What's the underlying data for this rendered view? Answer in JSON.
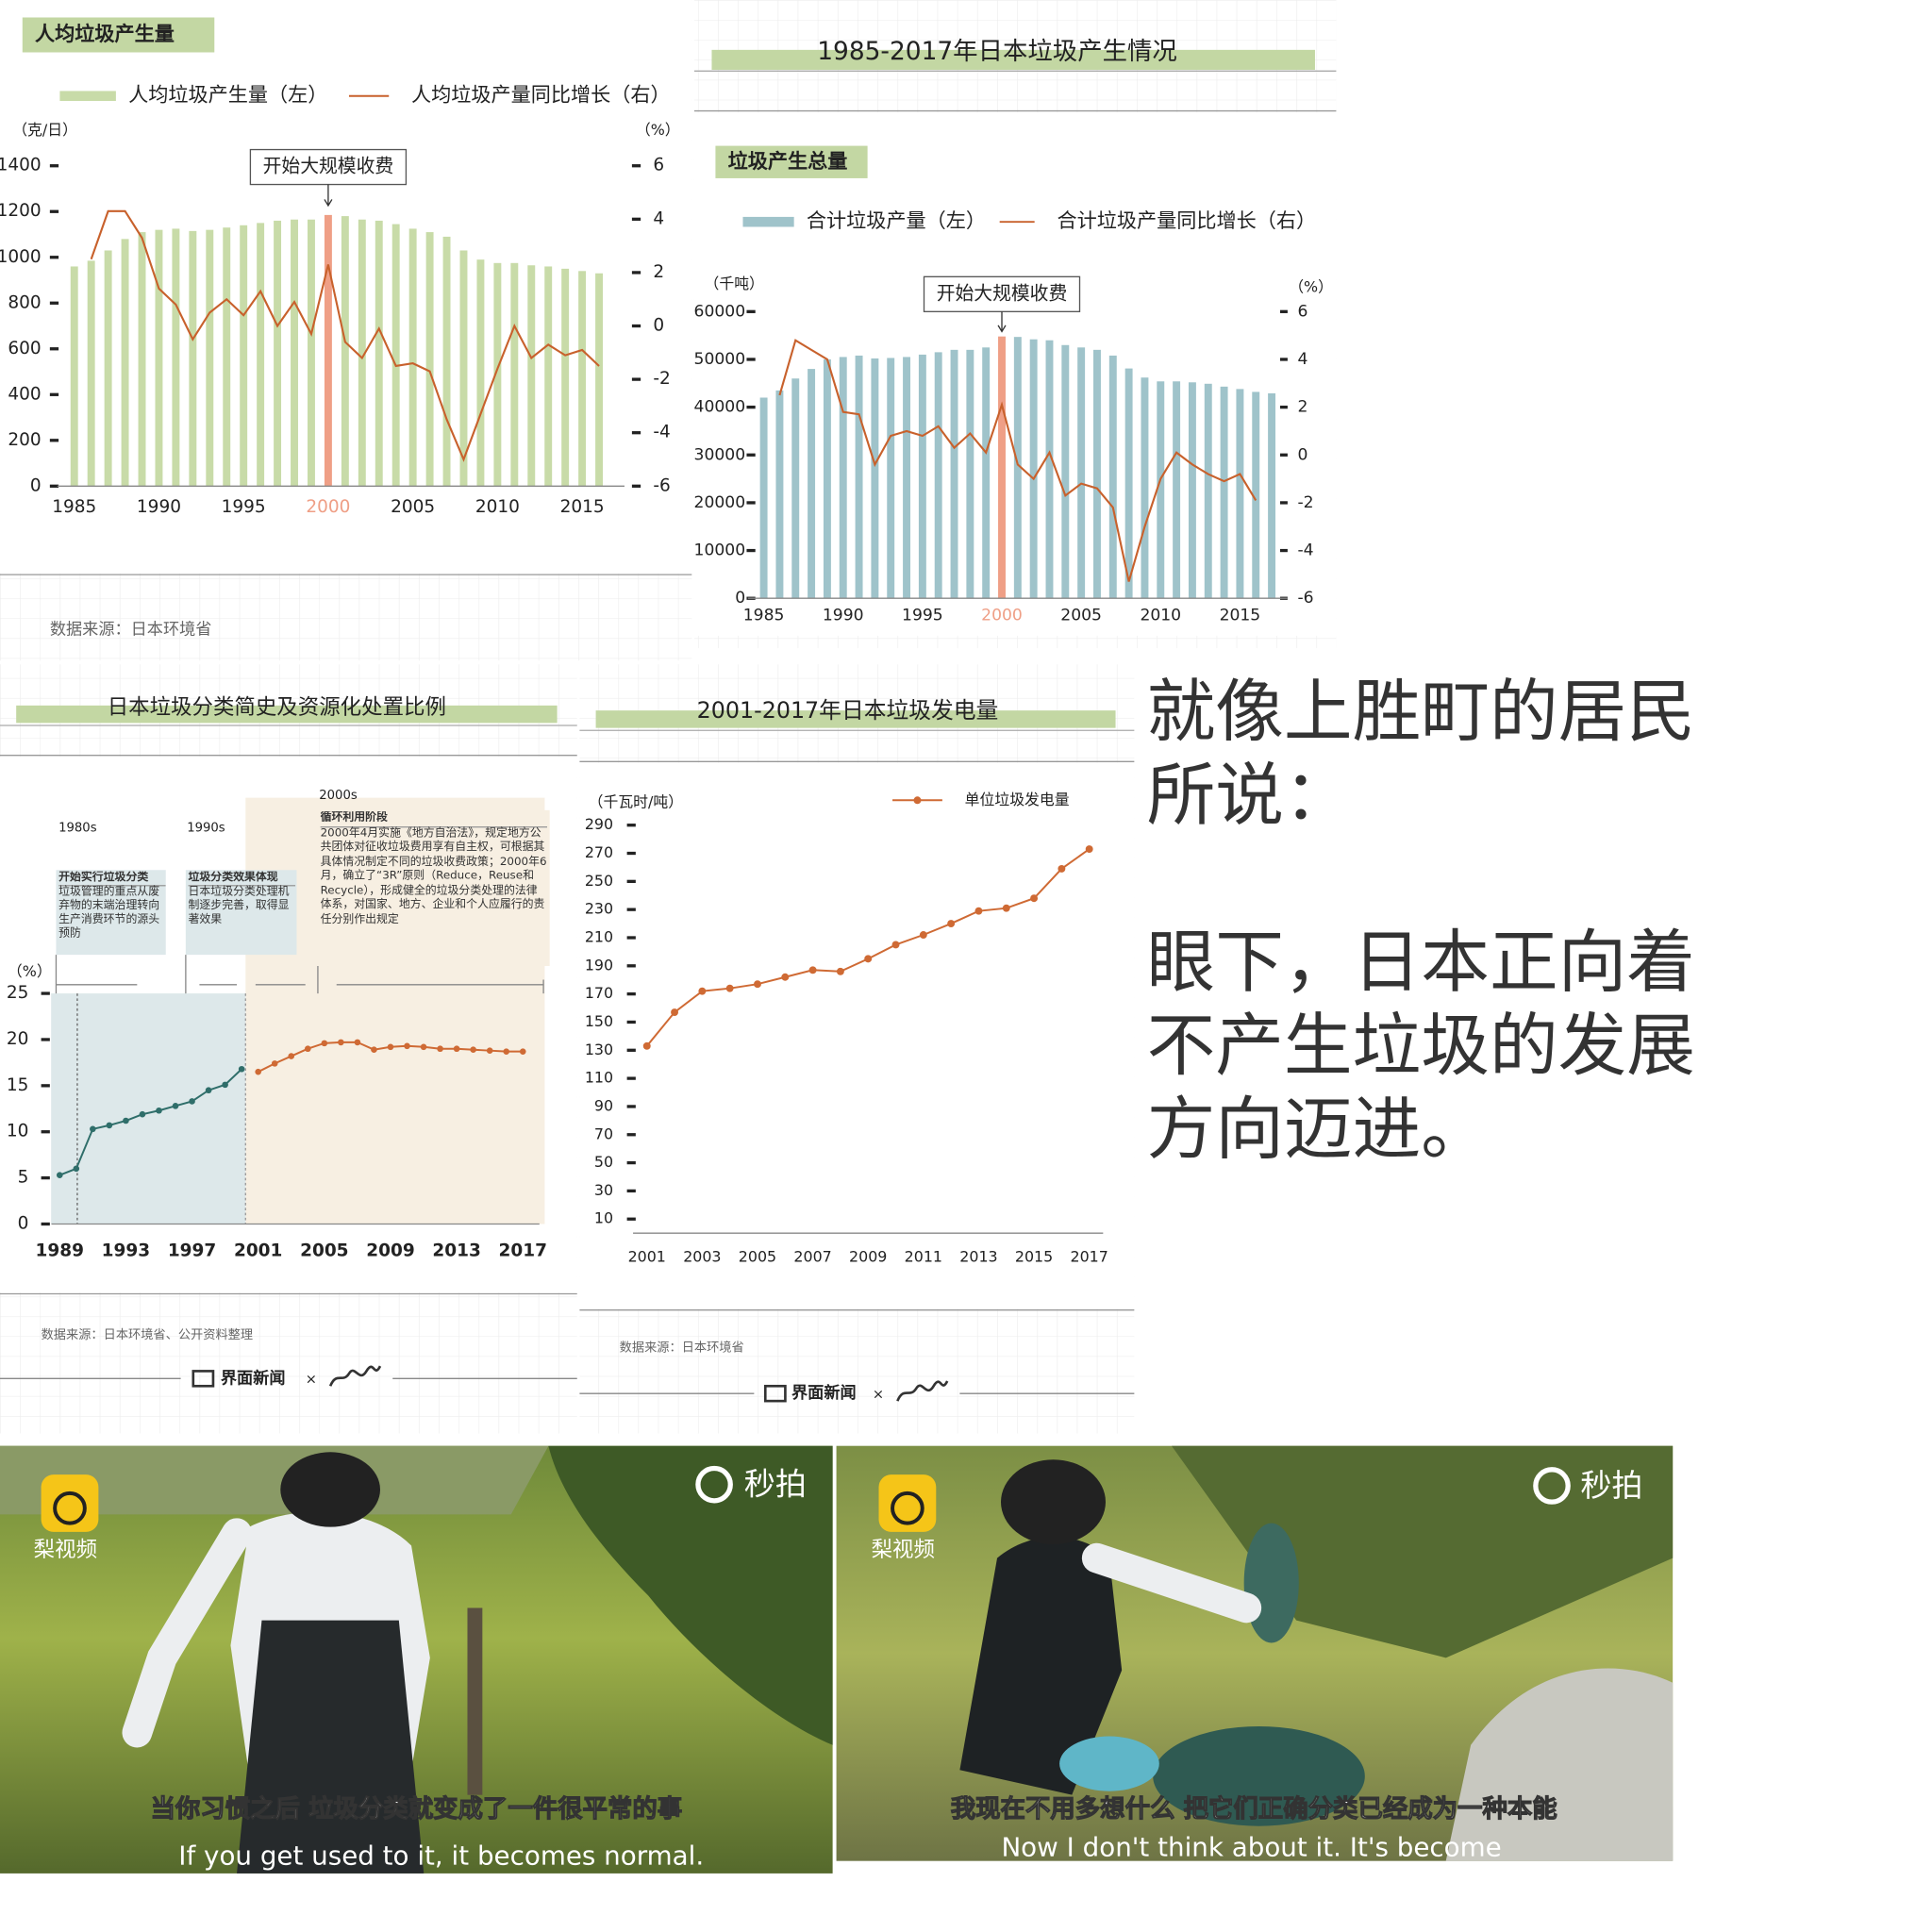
{
  "chart_data": [
    {
      "type": "bar_line",
      "header": "人均垃圾产生量",
      "units_left": "（克/日）",
      "units_right": "（%）",
      "annotation": {
        "text": "开始大规模收费",
        "x": 2000
      },
      "highlight_color": "#ef9f86",
      "x": [
        1985,
        1986,
        1987,
        1988,
        1989,
        1990,
        1991,
        1992,
        1993,
        1994,
        1995,
        1996,
        1997,
        1998,
        1999,
        2000,
        2001,
        2002,
        2003,
        2004,
        2005,
        2006,
        2007,
        2008,
        2009,
        2010,
        2011,
        2012,
        2013,
        2014,
        2015,
        2016
      ],
      "xlim": [
        1984,
        2017.5
      ],
      "xticks": [
        1985,
        1990,
        1995,
        2000,
        2005,
        2010,
        2015
      ],
      "series": [
        {
          "name": "人均垃圾产生量（左）",
          "color": "#c8dba8",
          "values": [
            960,
            985,
            1030,
            1080,
            1110,
            1120,
            1125,
            1115,
            1120,
            1130,
            1140,
            1150,
            1160,
            1165,
            1165,
            1185,
            1180,
            1165,
            1160,
            1145,
            1125,
            1110,
            1090,
            1030,
            990,
            975,
            975,
            965,
            960,
            950,
            940,
            930
          ]
        },
        {
          "name": "人均垃圾产量同比增长（右）",
          "color": "#c8612c",
          "axis": "y2",
          "values": [
            null,
            2.5,
            4.3,
            4.3,
            3.3,
            1.4,
            0.8,
            -0.5,
            0.5,
            1.0,
            0.4,
            1.3,
            0,
            0.9,
            -0.3,
            2.3,
            -0.6,
            -1.2,
            -0.1,
            -1.5,
            -1.4,
            -1.7,
            -3.5,
            -5.0,
            -3.3,
            -1.6,
            0,
            -1.2,
            -0.7,
            -1.1,
            -0.9,
            -1.5
          ]
        }
      ],
      "ylim": [
        0,
        1400
      ],
      "yticks": [
        0,
        200,
        400,
        600,
        800,
        1000,
        1200,
        1400
      ],
      "y2lim": [
        -6,
        6
      ],
      "y2ticks": [
        -6,
        -4,
        -2,
        0,
        2,
        4,
        6
      ],
      "source": "数据来源：日本环境省"
    },
    {
      "type": "bar_line",
      "title": "1985-2017年日本垃圾产生情况",
      "header": "垃圾产生总量",
      "units_left": "（千吨）",
      "units_right": "（%）",
      "annotation": {
        "text": "开始大规模收费",
        "x": 2000
      },
      "highlight_color": "#ef9f86",
      "x": [
        1985,
        1986,
        1987,
        1988,
        1989,
        1990,
        1991,
        1992,
        1993,
        1994,
        1995,
        1996,
        1997,
        1998,
        1999,
        2000,
        2001,
        2002,
        2003,
        2004,
        2005,
        2006,
        2007,
        2008,
        2009,
        2010,
        2011,
        2012,
        2013,
        2014,
        2015,
        2016,
        2017
      ],
      "xlim": [
        1984,
        2018
      ],
      "xticks": [
        1985,
        1990,
        1995,
        2000,
        2005,
        2010,
        2015
      ],
      "series": [
        {
          "name": "合计垃圾产量（左）",
          "color": "#9fc3ca",
          "values": [
            42000,
            43500,
            46000,
            48000,
            50000,
            50500,
            50800,
            50200,
            50300,
            50500,
            51000,
            51500,
            52000,
            52000,
            52500,
            54800,
            54700,
            54200,
            54000,
            53000,
            52500,
            52000,
            50800,
            48100,
            46200,
            45400,
            45400,
            45200,
            44900,
            44300,
            43800,
            43200,
            42900
          ]
        },
        {
          "name": "合计垃圾产量同比增长（右）",
          "color": "#c8612c",
          "axis": "y2",
          "values": [
            null,
            2.5,
            4.8,
            4.4,
            4.0,
            1.8,
            1.7,
            -0.4,
            0.8,
            1.0,
            0.8,
            1.2,
            0.3,
            0.9,
            0.1,
            2.1,
            -0.4,
            -1.0,
            0.1,
            -1.7,
            -1.2,
            -1.4,
            -2.2,
            -5.3,
            -3.0,
            -1.0,
            0.1,
            -0.4,
            -0.8,
            -1.1,
            -0.8,
            -1.9,
            null
          ]
        }
      ],
      "ylim": [
        0,
        60000
      ],
      "yticks": [
        0,
        10000,
        20000,
        30000,
        40000,
        50000,
        60000
      ],
      "y2lim": [
        -6,
        6
      ],
      "y2ticks": [
        -6,
        -4,
        -2,
        0,
        2,
        4,
        6
      ]
    },
    {
      "type": "line",
      "title": "日本垃圾分类简史及资源化处置比例",
      "units_left": "（%）",
      "eras": [
        {
          "decade": "1980s",
          "heading": "开始实行垃圾分类",
          "text": "垃圾管理的重点从废弃物的末端治理转向生产消费环节的源头预防"
        },
        {
          "decade": "1990s",
          "heading": "垃圾分类效果体现",
          "text": "日本垃圾分类处理机制逐步完善，取得显著效果"
        },
        {
          "decade": "2000s",
          "heading": "循环利用阶段",
          "text": "2000年4月实施《地方自治法》，规定地方公共团体对征收垃圾费用享有自主权，可根据其具体情况制定不同的垃圾收费政策；2000年6月，确立了“3R”原则（Reduce，Reuse和Recycle），形成健全的垃圾分类处理的法律体系，对国家、地方、企业和个人应履行的责任分别作出规定"
        }
      ],
      "x": [
        1989,
        1990,
        1991,
        1992,
        1993,
        1994,
        1995,
        1996,
        1997,
        1998,
        1999,
        2000,
        2001,
        2002,
        2003,
        2004,
        2005,
        2006,
        2007,
        2008,
        2009,
        2010,
        2011,
        2012,
        2013,
        2014,
        2015,
        2016,
        2017
      ],
      "xlim": [
        1988.5,
        2018
      ],
      "xticks": [
        1989,
        1993,
        1997,
        2001,
        2005,
        2009,
        2013,
        2017
      ],
      "series": [
        {
          "color": "#2f6e6a",
          "values": [
            5.3,
            6.0,
            10.3,
            10.7,
            11.2,
            11.9,
            12.3,
            12.8,
            13.3,
            14.5,
            15.1,
            16.8,
            null,
            null,
            null,
            null,
            null,
            null,
            null,
            null,
            null,
            null,
            null,
            null,
            null,
            null,
            null,
            null,
            null
          ]
        },
        {
          "color": "#cf6a34",
          "values": [
            null,
            null,
            null,
            null,
            null,
            null,
            null,
            null,
            null,
            null,
            null,
            null,
            16.5,
            17.4,
            18.2,
            19.0,
            19.6,
            19.7,
            19.7,
            18.9,
            19.2,
            19.3,
            19.2,
            19.0,
            19.0,
            18.9,
            18.8,
            18.7,
            18.7
          ]
        }
      ],
      "ylim": [
        0,
        25
      ],
      "yticks": [
        0,
        5,
        10,
        15,
        20,
        25
      ],
      "source": "数据来源：日本环境省、公开资料整理"
    },
    {
      "type": "line",
      "title": "2001-2017年日本垃圾发电量",
      "units_left": "（千瓦时/吨）",
      "x": [
        2001,
        2002,
        2003,
        2004,
        2005,
        2006,
        2007,
        2008,
        2009,
        2010,
        2011,
        2012,
        2013,
        2014,
        2015,
        2016,
        2017
      ],
      "xlim": [
        2000.5,
        2017.5
      ],
      "xticks": [
        2001,
        2003,
        2005,
        2007,
        2009,
        2011,
        2013,
        2015,
        2017
      ],
      "series": [
        {
          "name": "单位垃圾发电量",
          "color": "#cf6a34",
          "values": [
            133,
            157,
            172,
            174,
            177,
            182,
            187,
            186,
            195,
            205,
            212,
            220,
            229,
            231,
            238,
            259,
            273
          ]
        }
      ],
      "ylim": [
        0,
        290
      ],
      "yticks": [
        10,
        30,
        50,
        70,
        90,
        110,
        130,
        150,
        170,
        190,
        210,
        230,
        250,
        270,
        290
      ],
      "source": "数据来源：日本环境省"
    }
  ],
  "footer": {
    "brand": "界面新闻",
    "times": "×"
  },
  "text": {
    "paragraphs": [
      "就像上胜町的居民所说：",
      "眼下，日本正向着不产生垃圾的发展方向迈进。"
    ]
  },
  "videos": [
    {
      "platform": "梨视频",
      "brand": "秒拍",
      "subtitle_zh": "当你习惯之后 垃圾分类就变成了一件很平常的事",
      "subtitle_en": "If you get used to it, it becomes normal."
    },
    {
      "platform": "梨视频",
      "brand": "秒拍",
      "subtitle_zh": "我现在不用多想什么 把它们正确分类已经成为一种本能",
      "subtitle_en": "Now I don't think about it. It's become"
    }
  ]
}
